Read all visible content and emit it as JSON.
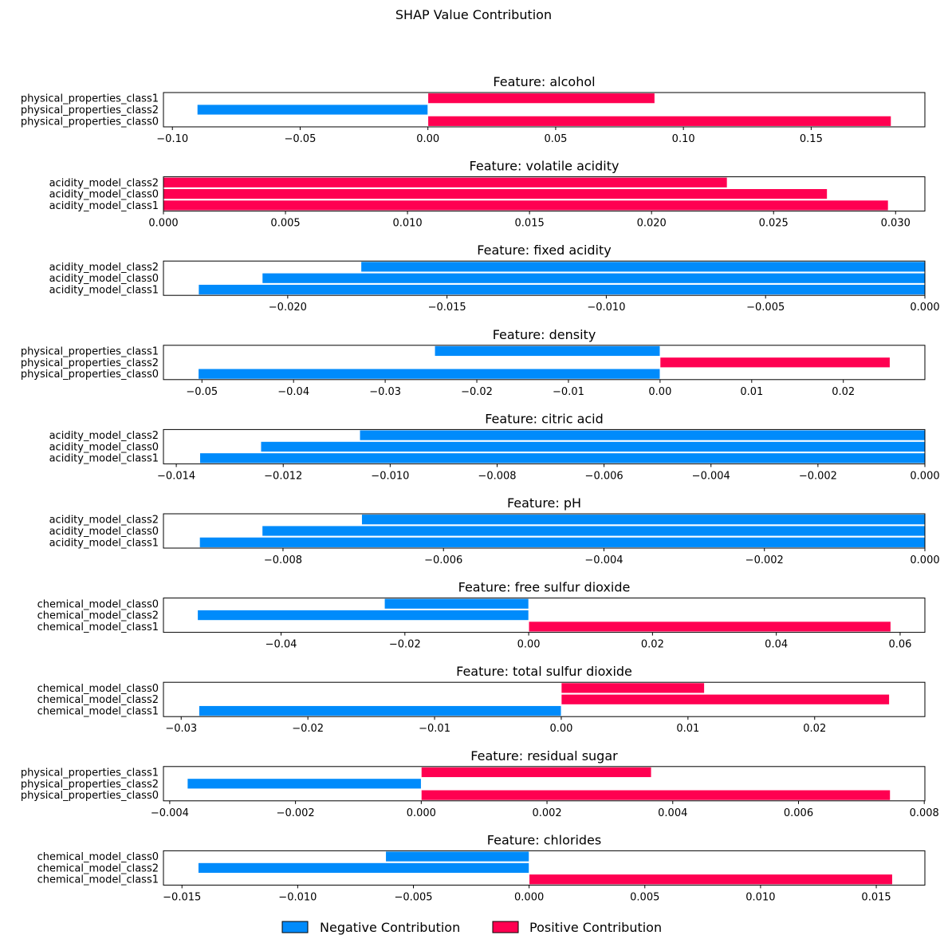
{
  "figure_title": "SHAP Value Contribution",
  "legend": {
    "items": [
      {
        "label": "Negative Contribution",
        "color": "#008bfb"
      },
      {
        "label": "Positive Contribution",
        "color": "#ff0051"
      }
    ]
  },
  "colors": {
    "negative": "#008bfb",
    "positive": "#ff0051"
  },
  "chart_data": [
    {
      "type": "bar",
      "orientation": "horizontal",
      "title": "Feature: alcohol",
      "categories": [
        "physical_properties_class1",
        "physical_properties_class2",
        "physical_properties_class0"
      ],
      "values": [
        0.0888,
        -0.0903,
        0.1813
      ],
      "xlim": [
        -0.1035,
        0.1945
      ],
      "ticks": [
        -0.1,
        -0.05,
        0.0,
        0.05,
        0.1,
        0.15
      ],
      "tick_labels": [
        "−0.10",
        "−0.05",
        "0.00",
        "0.05",
        "0.10",
        "0.15"
      ]
    },
    {
      "type": "bar",
      "orientation": "horizontal",
      "title": "Feature: volatile acidity",
      "categories": [
        "acidity_model_class2",
        "acidity_model_class0",
        "acidity_model_class1"
      ],
      "values": [
        0.0231,
        0.0272,
        0.0297
      ],
      "xlim": [
        0.0,
        0.0312
      ],
      "ticks": [
        0.0,
        0.005,
        0.01,
        0.015,
        0.02,
        0.025,
        0.03
      ],
      "tick_labels": [
        "0.000",
        "0.005",
        "0.010",
        "0.015",
        "0.020",
        "0.025",
        "0.030"
      ]
    },
    {
      "type": "bar",
      "orientation": "horizontal",
      "title": "Feature: fixed acidity",
      "categories": [
        "acidity_model_class2",
        "acidity_model_class0",
        "acidity_model_class1"
      ],
      "values": [
        -0.0177,
        -0.0208,
        -0.0228
      ],
      "xlim": [
        -0.0239,
        0.0
      ],
      "ticks": [
        -0.02,
        -0.015,
        -0.01,
        -0.005,
        0.0
      ],
      "tick_labels": [
        "−0.020",
        "−0.015",
        "−0.010",
        "−0.005",
        "0.000"
      ]
    },
    {
      "type": "bar",
      "orientation": "horizontal",
      "title": "Feature: density",
      "categories": [
        "physical_properties_class1",
        "physical_properties_class2",
        "physical_properties_class0"
      ],
      "values": [
        -0.0246,
        0.0251,
        -0.0504
      ],
      "xlim": [
        -0.0542,
        0.0289
      ],
      "ticks": [
        -0.05,
        -0.04,
        -0.03,
        -0.02,
        -0.01,
        0.0,
        0.01,
        0.02
      ],
      "tick_labels": [
        "−0.05",
        "−0.04",
        "−0.03",
        "−0.02",
        "−0.01",
        "0.00",
        "0.01",
        "0.02"
      ]
    },
    {
      "type": "bar",
      "orientation": "horizontal",
      "title": "Feature: citric acid",
      "categories": [
        "acidity_model_class2",
        "acidity_model_class0",
        "acidity_model_class1"
      ],
      "values": [
        -0.01057,
        -0.01242,
        -0.01356
      ],
      "xlim": [
        -0.01424,
        0.0
      ],
      "ticks": [
        -0.014,
        -0.012,
        -0.01,
        -0.008,
        -0.006,
        -0.004,
        -0.002,
        0.0
      ],
      "tick_labels": [
        "−0.014",
        "−0.012",
        "−0.010",
        "−0.008",
        "−0.006",
        "−0.004",
        "−0.002",
        "0.000"
      ]
    },
    {
      "type": "bar",
      "orientation": "horizontal",
      "title": "Feature: pH",
      "categories": [
        "acidity_model_class2",
        "acidity_model_class0",
        "acidity_model_class1"
      ],
      "values": [
        -0.00702,
        -0.00826,
        -0.00904
      ],
      "xlim": [
        -0.00949,
        0.0
      ],
      "ticks": [
        -0.008,
        -0.006,
        -0.004,
        -0.002,
        0.0
      ],
      "tick_labels": [
        "−0.008",
        "−0.006",
        "−0.004",
        "−0.002",
        "0.000"
      ]
    },
    {
      "type": "bar",
      "orientation": "horizontal",
      "title": "Feature: free sulfur dioxide",
      "categories": [
        "chemical_model_class0",
        "chemical_model_class2",
        "chemical_model_class1"
      ],
      "values": [
        -0.0233,
        -0.0535,
        0.0585
      ],
      "xlim": [
        -0.059,
        0.064
      ],
      "ticks": [
        -0.04,
        -0.02,
        0.0,
        0.02,
        0.04,
        0.06
      ],
      "tick_labels": [
        "−0.04",
        "−0.02",
        "0.00",
        "0.02",
        "0.04",
        "0.06"
      ]
    },
    {
      "type": "bar",
      "orientation": "horizontal",
      "title": "Feature: total sulfur dioxide",
      "categories": [
        "chemical_model_class0",
        "chemical_model_class2",
        "chemical_model_class1"
      ],
      "values": [
        0.0113,
        0.0259,
        -0.0286
      ],
      "xlim": [
        -0.0314,
        0.0287
      ],
      "ticks": [
        -0.03,
        -0.02,
        -0.01,
        0.0,
        0.01,
        0.02
      ],
      "tick_labels": [
        "−0.03",
        "−0.02",
        "−0.01",
        "0.00",
        "0.01",
        "0.02"
      ]
    },
    {
      "type": "bar",
      "orientation": "horizontal",
      "title": "Feature: residual sugar",
      "categories": [
        "physical_properties_class1",
        "physical_properties_class2",
        "physical_properties_class0"
      ],
      "values": [
        0.00366,
        -0.00372,
        0.00746
      ],
      "xlim": [
        -0.0041,
        0.00801
      ],
      "ticks": [
        -0.004,
        -0.002,
        0.0,
        0.002,
        0.004,
        0.006,
        0.008
      ],
      "tick_labels": [
        "−0.004",
        "−0.002",
        "0.000",
        "0.002",
        "0.004",
        "0.006",
        "0.008"
      ]
    },
    {
      "type": "bar",
      "orientation": "horizontal",
      "title": "Feature: chlorides",
      "categories": [
        "chemical_model_class0",
        "chemical_model_class2",
        "chemical_model_class1"
      ],
      "values": [
        -0.0062,
        -0.0143,
        0.0157
      ],
      "xlim": [
        -0.0158,
        0.0171
      ],
      "ticks": [
        -0.015,
        -0.01,
        -0.005,
        0.0,
        0.005,
        0.01,
        0.015
      ],
      "tick_labels": [
        "−0.015",
        "−0.010",
        "−0.005",
        "0.000",
        "0.005",
        "0.010",
        "0.015"
      ]
    }
  ]
}
